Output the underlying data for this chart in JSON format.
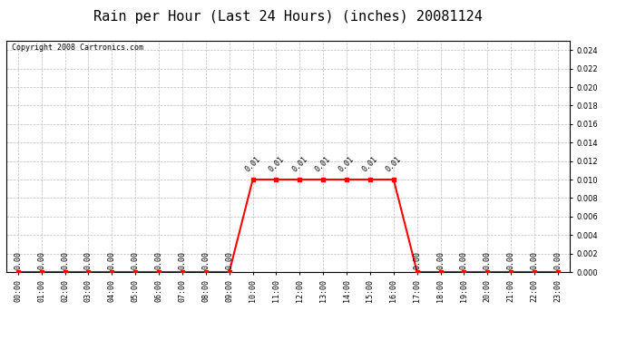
{
  "title": "Rain per Hour (Last 24 Hours) (inches) 20081124",
  "copyright": "Copyright 2008 Cartronics.com",
  "hours": [
    0,
    1,
    2,
    3,
    4,
    5,
    6,
    7,
    8,
    9,
    10,
    11,
    12,
    13,
    14,
    15,
    16,
    17,
    18,
    19,
    20,
    21,
    22,
    23
  ],
  "values": [
    0,
    0,
    0,
    0,
    0,
    0,
    0,
    0,
    0,
    0,
    0.01,
    0.01,
    0.01,
    0.01,
    0.01,
    0.01,
    0.01,
    0,
    0,
    0,
    0,
    0,
    0,
    0
  ],
  "ylim": [
    0,
    0.025
  ],
  "yticks": [
    0.0,
    0.002,
    0.004,
    0.006,
    0.008,
    0.01,
    0.012,
    0.014,
    0.016,
    0.018,
    0.02,
    0.022,
    0.024
  ],
  "line_color": "red",
  "marker_color": "red",
  "grid_color": "#bbbbbb",
  "background_color": "white",
  "annotation_color": "black",
  "title_fontsize": 11,
  "tick_fontsize": 6,
  "annotation_fontsize": 6,
  "copyright_fontsize": 6
}
